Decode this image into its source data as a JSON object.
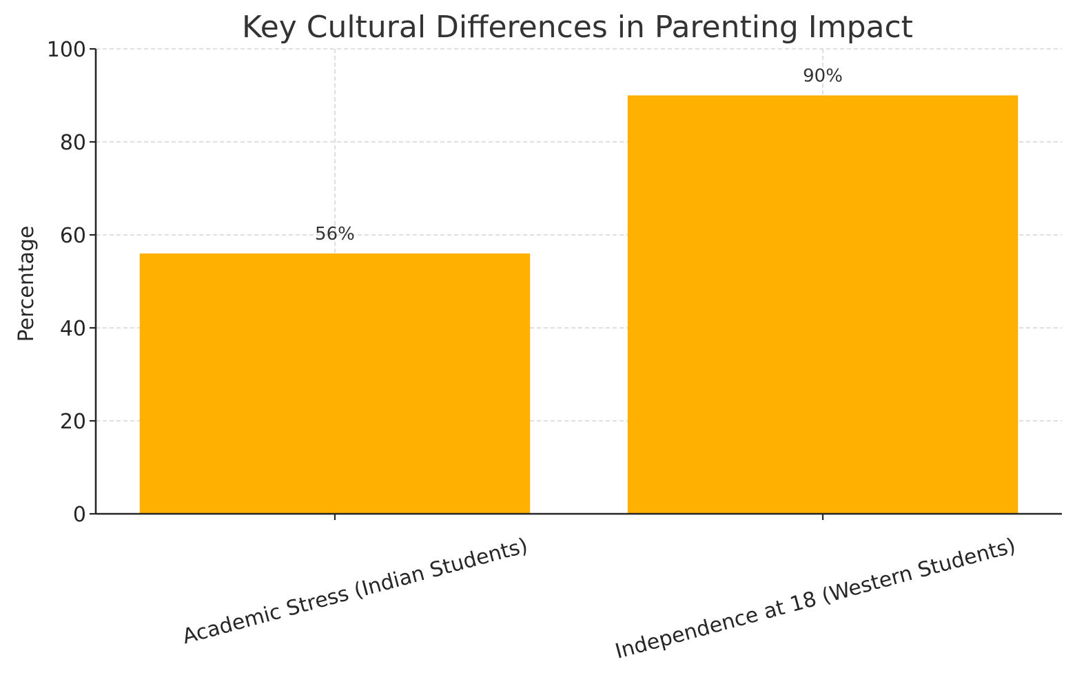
{
  "chart_data": {
    "type": "bar",
    "title": "Key Cultural Differences in Parenting Impact",
    "xlabel": "",
    "ylabel": "Percentage",
    "categories": [
      "Academic Stress (Indian Students)",
      "Independence at 18 (Western Students)"
    ],
    "values": [
      56,
      90
    ],
    "data_labels": [
      "56%",
      "90%"
    ],
    "ylim": [
      0,
      100
    ],
    "yticks": [
      "0",
      "20",
      "40",
      "60",
      "80",
      "100"
    ],
    "bar_color": "#FFB000",
    "grid": true,
    "legend": "none"
  }
}
